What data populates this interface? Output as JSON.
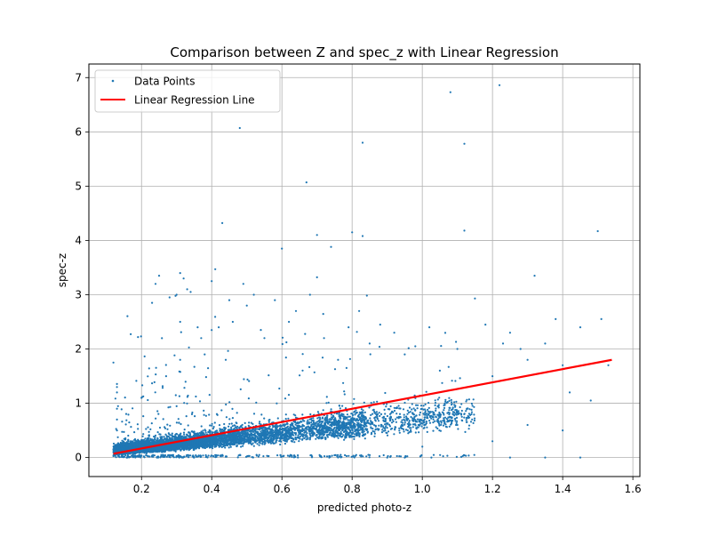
{
  "chart_data": {
    "type": "scatter",
    "title": "Comparison between Z and spec_z with Linear Regression",
    "xlabel": "predicted photo-z",
    "ylabel": "spec-z",
    "xlim": [
      0.05,
      1.62
    ],
    "ylim": [
      -0.35,
      7.25
    ],
    "xticks": [
      0.2,
      0.4,
      0.6,
      0.8,
      1.0,
      1.2,
      1.4,
      1.6
    ],
    "xtick_labels": [
      "0.2",
      "0.4",
      "0.6",
      "0.8",
      "1.0",
      "1.2",
      "1.4",
      "1.6"
    ],
    "yticks": [
      0,
      1,
      2,
      3,
      4,
      5,
      6,
      7
    ],
    "ytick_labels": [
      "0",
      "1",
      "2",
      "3",
      "4",
      "5",
      "6",
      "7"
    ],
    "grid": true,
    "legend_position": "top-left",
    "series": [
      {
        "name": "Data Points",
        "kind": "scatter",
        "color": "#1f77b4",
        "points": [
          [
            0.12,
            1.75
          ],
          [
            0.13,
            1.3
          ],
          [
            0.13,
            1.2
          ],
          [
            0.13,
            0.9
          ],
          [
            0.13,
            0.7
          ],
          [
            0.13,
            0.5
          ],
          [
            0.19,
            2.22
          ],
          [
            0.2,
            1.1
          ],
          [
            0.23,
            2.85
          ],
          [
            0.24,
            3.2
          ],
          [
            0.25,
            3.35
          ],
          [
            0.27,
            1.5
          ],
          [
            0.28,
            2.95
          ],
          [
            0.3,
            3.0
          ],
          [
            0.31,
            3.4
          ],
          [
            0.32,
            3.3
          ],
          [
            0.33,
            3.1
          ],
          [
            0.34,
            3.05
          ],
          [
            0.31,
            2.5
          ],
          [
            0.36,
            2.4
          ],
          [
            0.37,
            2.2
          ],
          [
            0.38,
            1.9
          ],
          [
            0.4,
            2.35
          ],
          [
            0.4,
            3.25
          ],
          [
            0.41,
            3.47
          ],
          [
            0.42,
            2.4
          ],
          [
            0.43,
            4.32
          ],
          [
            0.44,
            1.8
          ],
          [
            0.45,
            2.9
          ],
          [
            0.46,
            2.5
          ],
          [
            0.48,
            6.07
          ],
          [
            0.49,
            3.2
          ],
          [
            0.5,
            2.8
          ],
          [
            0.52,
            3.0
          ],
          [
            0.55,
            2.2
          ],
          [
            0.58,
            2.9
          ],
          [
            0.6,
            3.85
          ],
          [
            0.62,
            2.5
          ],
          [
            0.64,
            2.7
          ],
          [
            0.67,
            5.07
          ],
          [
            0.68,
            3.0
          ],
          [
            0.7,
            3.32
          ],
          [
            0.7,
            4.1
          ],
          [
            0.72,
            2.2
          ],
          [
            0.74,
            3.88
          ],
          [
            0.76,
            1.8
          ],
          [
            0.79,
            2.4
          ],
          [
            0.8,
            4.15
          ],
          [
            0.82,
            2.7
          ],
          [
            0.83,
            5.8
          ],
          [
            0.83,
            4.08
          ],
          [
            0.85,
            2.1
          ],
          [
            0.88,
            2.45
          ],
          [
            0.92,
            2.3
          ],
          [
            0.95,
            1.9
          ],
          [
            0.98,
            2.05
          ],
          [
            1.02,
            2.4
          ],
          [
            1.05,
            1.6
          ],
          [
            1.08,
            6.73
          ],
          [
            1.1,
            2.0
          ],
          [
            1.12,
            5.78
          ],
          [
            1.12,
            4.18
          ],
          [
            1.15,
            2.93
          ],
          [
            1.18,
            2.45
          ],
          [
            1.2,
            1.5
          ],
          [
            1.22,
            6.86
          ],
          [
            1.23,
            2.1
          ],
          [
            1.25,
            2.3
          ],
          [
            1.28,
            2.0
          ],
          [
            1.3,
            1.8
          ],
          [
            1.32,
            3.35
          ],
          [
            1.35,
            2.1
          ],
          [
            1.38,
            2.55
          ],
          [
            1.4,
            1.7
          ],
          [
            1.42,
            1.2
          ],
          [
            1.45,
            2.4
          ],
          [
            1.48,
            1.05
          ],
          [
            1.5,
            4.17
          ],
          [
            1.51,
            2.55
          ],
          [
            1.53,
            1.7
          ],
          [
            1.2,
            0.3
          ],
          [
            1.3,
            0.6
          ],
          [
            1.4,
            0.5
          ],
          [
            1.35,
            0.0
          ],
          [
            1.1,
            0.6
          ],
          [
            1.0,
            0.2
          ],
          [
            0.95,
            0.0
          ],
          [
            0.9,
            0.0
          ],
          [
            1.25,
            0.0
          ],
          [
            1.45,
            0.0
          ]
        ]
      },
      {
        "name": "Linear Regression Line",
        "kind": "line",
        "color": "#ff0000",
        "x": [
          0.12,
          1.54
        ],
        "y": [
          0.07,
          1.8
        ]
      }
    ]
  }
}
